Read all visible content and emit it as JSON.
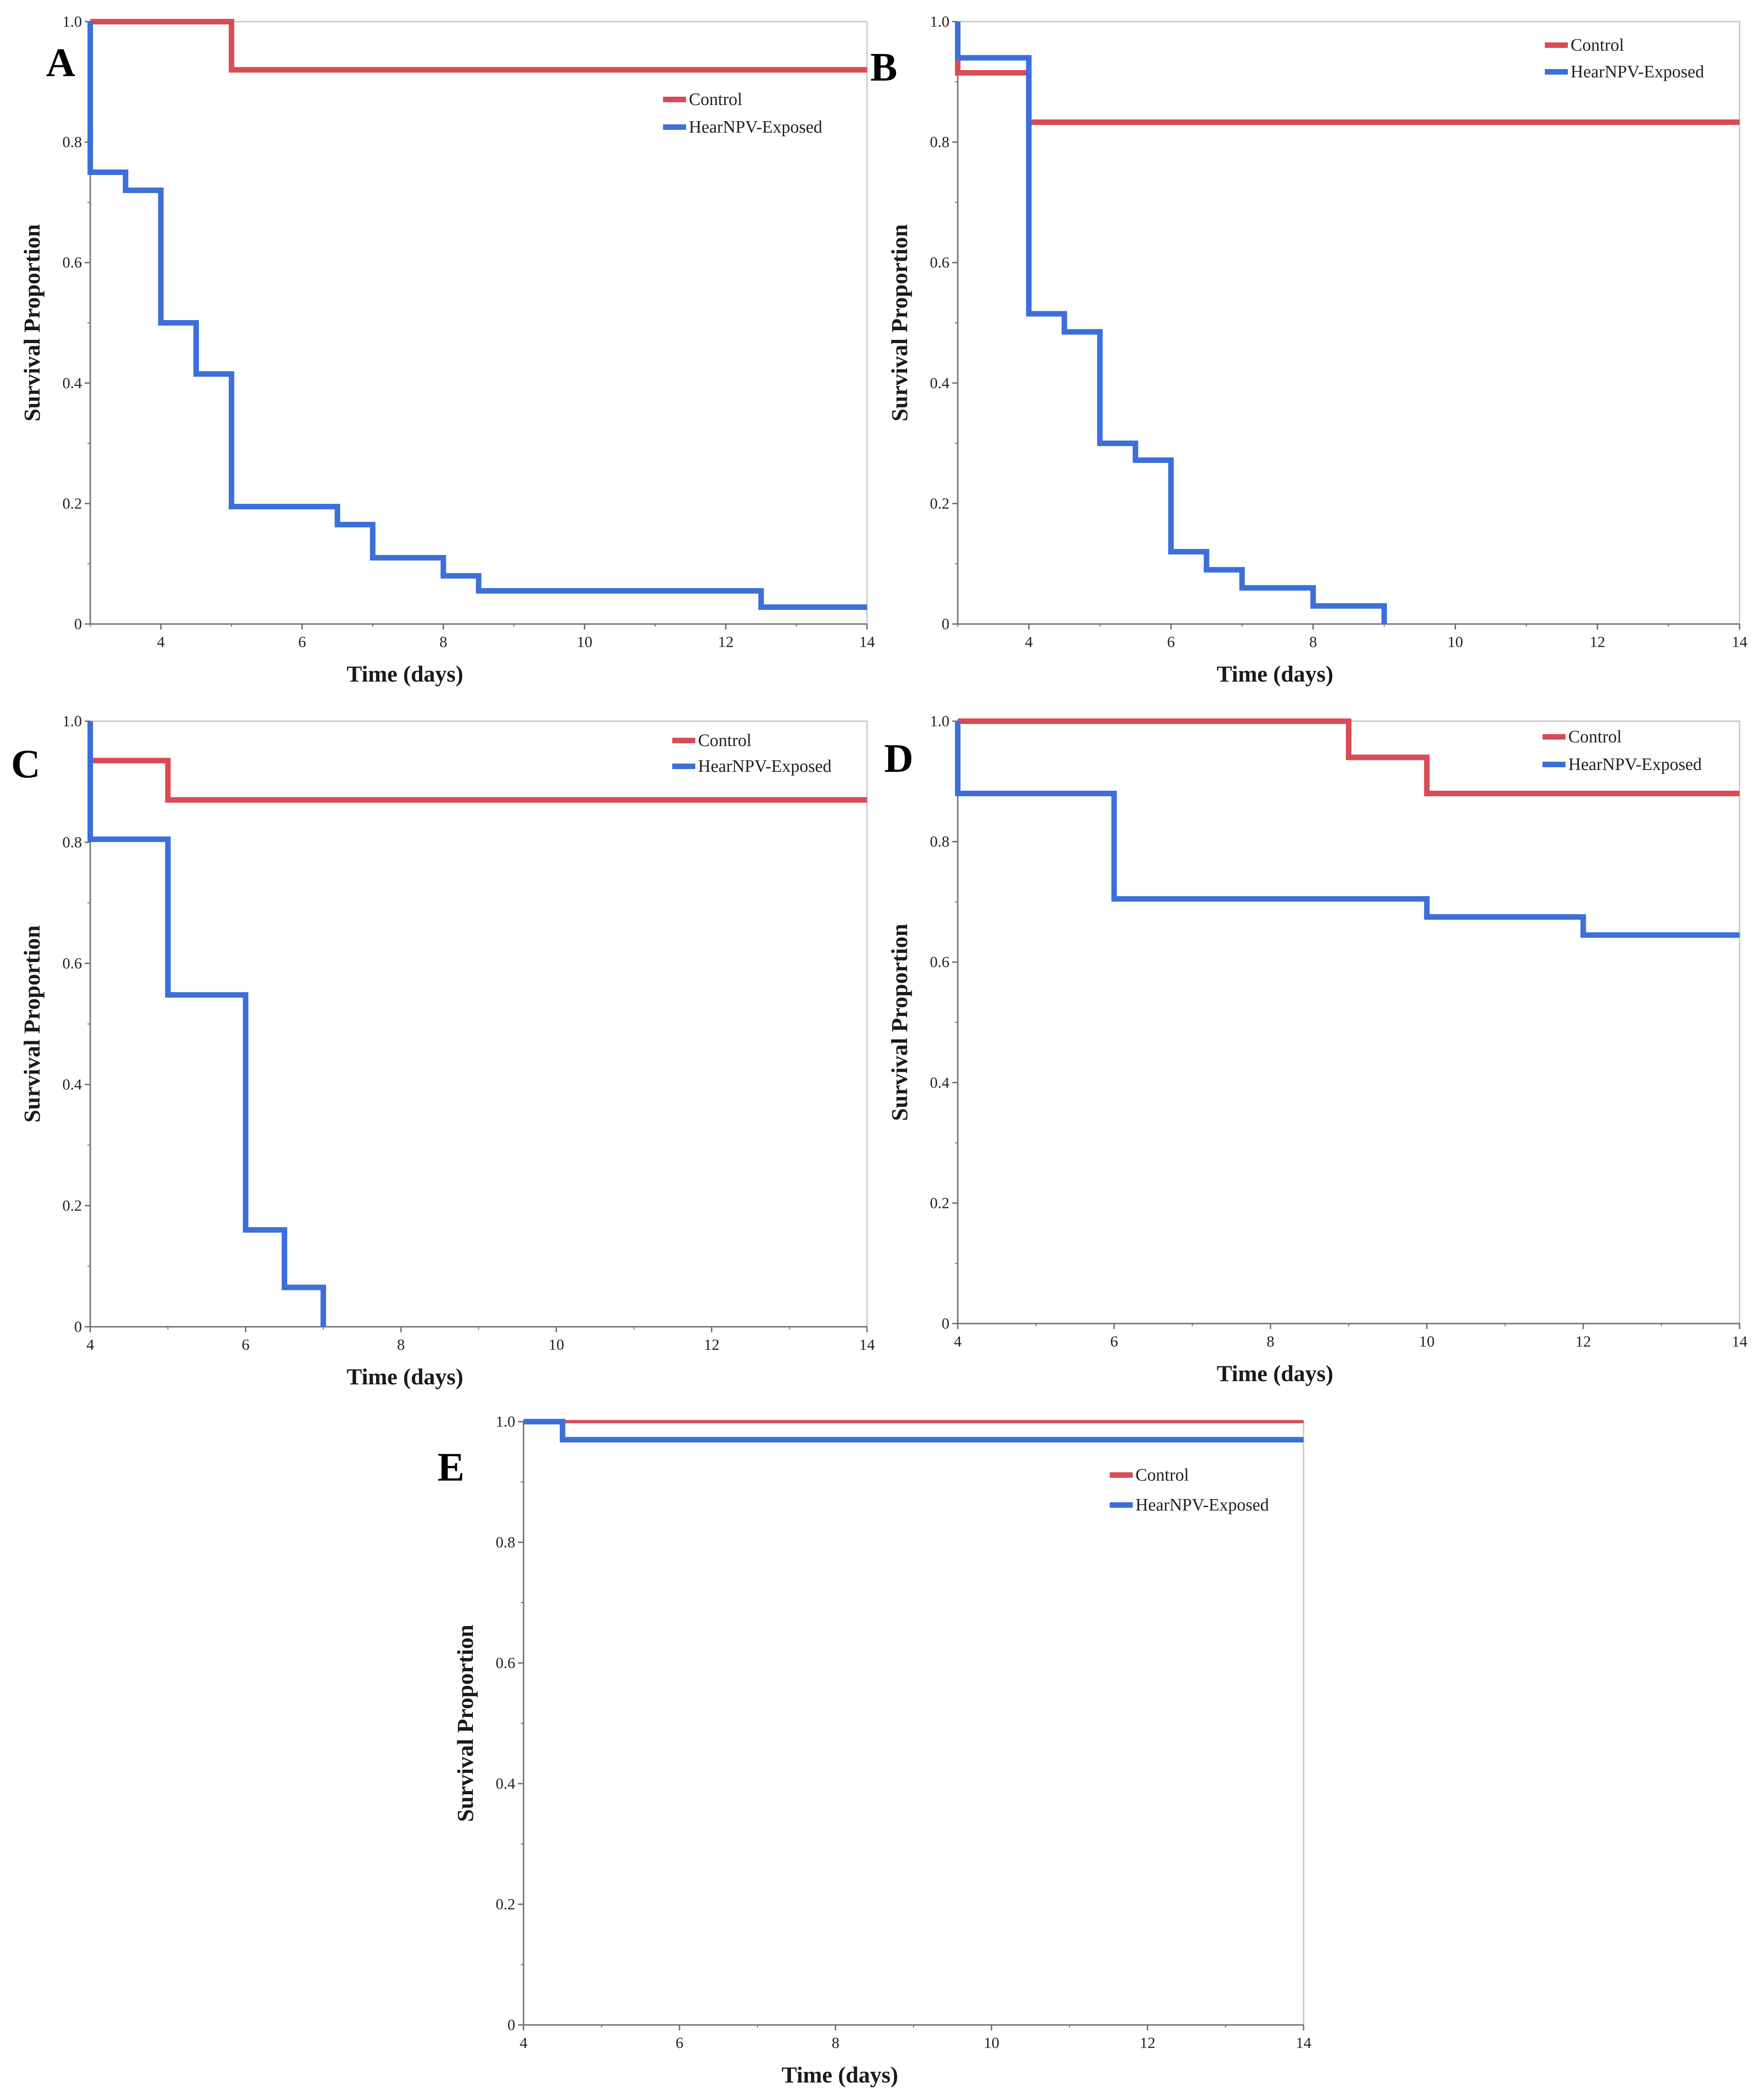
{
  "chart_data": [
    {
      "panel": "A",
      "type": "line",
      "step": true,
      "xlabel": "Time (days)",
      "ylabel": "Survival Proportion",
      "xlim": [
        3,
        14
      ],
      "ylim": [
        0,
        1
      ],
      "xticks": [
        4,
        6,
        8,
        10,
        12,
        14
      ],
      "xtick_labels": [
        "4",
        "6",
        "8",
        "10",
        "12",
        "14"
      ],
      "yticks": [
        0,
        0.2,
        0.4,
        0.6,
        0.8,
        1.0
      ],
      "ytick_labels": [
        "0",
        "0.2",
        "0.4",
        "0.6",
        "0.8",
        "1.0"
      ],
      "legend_position": "top-right",
      "series": [
        {
          "name": "Control",
          "color": "#d94b55",
          "width": 12,
          "x": [
            3,
            5,
            14
          ],
          "y": [
            1.0,
            0.92,
            0.92
          ]
        },
        {
          "name": "HearNPV-Exposed",
          "color": "#3c6fd9",
          "width": 12,
          "x": [
            3,
            3,
            3.5,
            4,
            4.5,
            5,
            6.5,
            7,
            8,
            8.5,
            12.5,
            14
          ],
          "y": [
            1.0,
            0.75,
            0.72,
            0.5,
            0.415,
            0.195,
            0.165,
            0.11,
            0.08,
            0.055,
            0.028,
            0.028
          ]
        }
      ]
    },
    {
      "panel": "B",
      "type": "line",
      "step": true,
      "xlabel": "Time (days)",
      "ylabel": "Survival Proportion",
      "xlim": [
        3,
        14
      ],
      "ylim": [
        0,
        1
      ],
      "xticks": [
        4,
        6,
        8,
        10,
        12,
        14
      ],
      "xtick_labels": [
        "4",
        "6",
        "8",
        "10",
        "12",
        "14"
      ],
      "yticks": [
        0,
        0.2,
        0.4,
        0.6,
        0.8,
        1.0
      ],
      "ytick_labels": [
        "0",
        "0.2",
        "0.4",
        "0.6",
        "0.8",
        "1.0"
      ],
      "legend_position": "top-right",
      "series": [
        {
          "name": "Control",
          "color": "#d94b55",
          "width": 12,
          "x": [
            3,
            3,
            4,
            14
          ],
          "y": [
            1.0,
            0.915,
            0.833,
            0.833
          ]
        },
        {
          "name": "HearNPV-Exposed",
          "color": "#3c6fd9",
          "width": 12,
          "x": [
            3,
            3,
            4,
            4.5,
            5,
            5.5,
            6,
            6.5,
            7,
            8,
            9
          ],
          "y": [
            1.0,
            0.94,
            0.515,
            0.485,
            0.3,
            0.272,
            0.12,
            0.09,
            0.06,
            0.03,
            0.0
          ]
        }
      ]
    },
    {
      "panel": "C",
      "type": "line",
      "step": true,
      "xlabel": "Time (days)",
      "ylabel": "Survival Proportion",
      "xlim": [
        4,
        14
      ],
      "ylim": [
        0,
        1
      ],
      "xticks": [
        4,
        6,
        8,
        10,
        12,
        14
      ],
      "xtick_labels": [
        "4",
        "6",
        "8",
        "10",
        "12",
        "14"
      ],
      "yticks": [
        0,
        0.2,
        0.4,
        0.6,
        0.8,
        1.0
      ],
      "ytick_labels": [
        "0",
        "0.2",
        "0.4",
        "0.6",
        "0.8",
        "1.0"
      ],
      "legend_position": "top-right",
      "series": [
        {
          "name": "Control",
          "color": "#d94b55",
          "width": 12,
          "x": [
            4,
            4,
            5,
            14
          ],
          "y": [
            1.0,
            0.935,
            0.87,
            0.87
          ]
        },
        {
          "name": "HearNPV-Exposed",
          "color": "#3c6fd9",
          "width": 12,
          "x": [
            4,
            4,
            5,
            6,
            6.5,
            7
          ],
          "y": [
            1.0,
            0.805,
            0.548,
            0.16,
            0.065,
            0.0
          ]
        }
      ]
    },
    {
      "panel": "D",
      "type": "line",
      "step": true,
      "xlabel": "Time (days)",
      "ylabel": "Survival Proportion",
      "xlim": [
        4,
        14
      ],
      "ylim": [
        0,
        1
      ],
      "xticks": [
        4,
        6,
        8,
        10,
        12,
        14
      ],
      "xtick_labels": [
        "4",
        "6",
        "8",
        "10",
        "12",
        "14"
      ],
      "yticks": [
        0,
        0.2,
        0.4,
        0.6,
        0.8,
        1.0
      ],
      "ytick_labels": [
        "0",
        "0.2",
        "0.4",
        "0.6",
        "0.8",
        "1.0"
      ],
      "legend_position": "top-right",
      "series": [
        {
          "name": "Control",
          "color": "#d94b55",
          "width": 12,
          "x": [
            4,
            9,
            10,
            14
          ],
          "y": [
            1.0,
            0.94,
            0.88,
            0.88
          ]
        },
        {
          "name": "HearNPV-Exposed",
          "color": "#3c6fd9",
          "width": 12,
          "x": [
            4,
            4,
            6,
            10,
            12,
            14
          ],
          "y": [
            1.0,
            0.88,
            0.705,
            0.675,
            0.645,
            0.645
          ]
        }
      ]
    },
    {
      "panel": "E",
      "type": "line",
      "step": true,
      "xlabel": "Time (days)",
      "ylabel": "Survival Proportion",
      "xlim": [
        4,
        14
      ],
      "ylim": [
        0,
        1
      ],
      "xticks": [
        4,
        6,
        8,
        10,
        12,
        14
      ],
      "xtick_labels": [
        "4",
        "6",
        "8",
        "10",
        "12",
        "14"
      ],
      "yticks": [
        0,
        0.2,
        0.4,
        0.6,
        0.8,
        1.0
      ],
      "ytick_labels": [
        "0",
        "0.2",
        "0.4",
        "0.6",
        "0.8",
        "1.0"
      ],
      "legend_position": "top-right",
      "series": [
        {
          "name": "Control",
          "color": "#d94b55",
          "width": 7,
          "x": [
            4,
            14
          ],
          "y": [
            1.0,
            1.0
          ]
        },
        {
          "name": "HearNPV-Exposed",
          "color": "#3c6fd9",
          "width": 12,
          "x": [
            4,
            4.5,
            14
          ],
          "y": [
            1.0,
            0.97,
            0.97
          ]
        }
      ]
    }
  ]
}
